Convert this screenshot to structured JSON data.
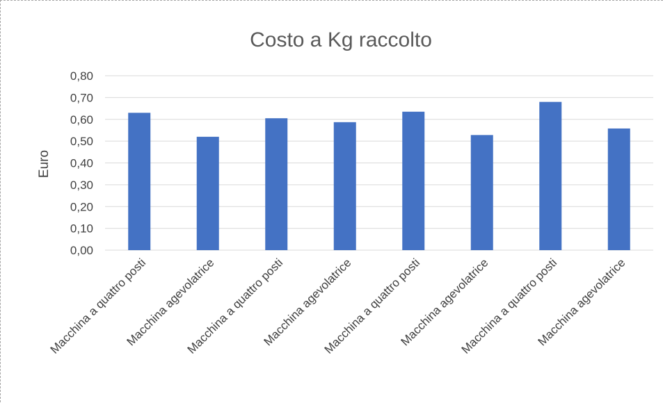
{
  "chart_data": {
    "type": "bar",
    "title": "Costo a Kg raccolto",
    "xlabel": "",
    "ylabel": "Euro",
    "categories": [
      "Macchina a quattro posti",
      "Macchina agevolatrice",
      "Macchina a quattro posti",
      "Macchina agevolatrice",
      "Macchina a quattro posti",
      "Macchina agevolatrice",
      "Macchina a quattro posti",
      "Macchina agevolatrice"
    ],
    "values": [
      0.63,
      0.52,
      0.605,
      0.587,
      0.635,
      0.528,
      0.68,
      0.558
    ],
    "ylim": [
      0,
      0.8
    ],
    "yticks": [
      "0,00",
      "0,10",
      "0,20",
      "0,30",
      "0,40",
      "0,50",
      "0,60",
      "0,70",
      "0,80"
    ],
    "grid": true,
    "legend": "none",
    "colors": {
      "bar": "#4472c4",
      "grid": "#d9d9d9",
      "axis": "#d9d9d9",
      "text": "#404040",
      "title": "#595959"
    }
  }
}
